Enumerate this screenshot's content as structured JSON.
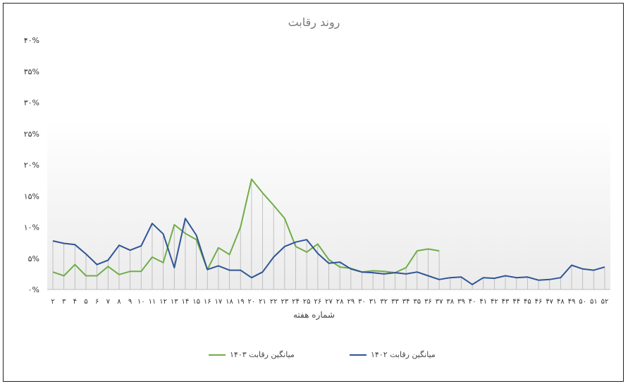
{
  "chart_data": {
    "type": "line",
    "title": "روند رقابت",
    "xlabel": "شماره هفته",
    "ylabel": "",
    "ylim": [
      0,
      40
    ],
    "y_ticks": [
      "۰%",
      "۵%",
      "۱۰%",
      "۱۵%",
      "۲۰%",
      "۲۵%",
      "۳۰%",
      "۳۵%",
      "۴۰%"
    ],
    "categories": [
      "۲",
      "۳",
      "۴",
      "۵",
      "۶",
      "۷",
      "۸",
      "۹",
      "۱۰",
      "۱۱",
      "۱۲",
      "۱۳",
      "۱۴",
      "۱۵",
      "۱۶",
      "۱۷",
      "۱۸",
      "۱۹",
      "۲۰",
      "۲۱",
      "۲۲",
      "۲۳",
      "۲۴",
      "۲۵",
      "۲۶",
      "۲۷",
      "۲۸",
      "۲۹",
      "۳۰",
      "۳۱",
      "۳۲",
      "۳۳",
      "۳۴",
      "۳۵",
      "۳۶",
      "۳۷",
      "۳۸",
      "۳۹",
      "۴۰",
      "۴۱",
      "۴۲",
      "۴۳",
      "۴۴",
      "۴۵",
      "۴۶",
      "۴۷",
      "۴۸",
      "۴۹",
      "۵۰",
      "۵۱",
      "۵۲"
    ],
    "series": [
      {
        "name": "میانگین رقابت ۱۴۰۳",
        "color": "#70ad47",
        "values": [
          2.8,
          2.2,
          4.0,
          2.2,
          2.2,
          3.7,
          2.4,
          2.9,
          2.9,
          5.2,
          4.3,
          10.4,
          9.0,
          8.0,
          3.2,
          6.7,
          5.6,
          10.0,
          17.7,
          15.5,
          13.5,
          11.4,
          6.9,
          6.0,
          7.3,
          4.8,
          3.6,
          3.4,
          2.8,
          3.0,
          2.9,
          2.7,
          3.5,
          6.2,
          6.5,
          6.2,
          null,
          null,
          null,
          null,
          null,
          null,
          null,
          null,
          null,
          null,
          null,
          null,
          null,
          null,
          null
        ]
      },
      {
        "name": "میانگین رقابت ۱۴۰۲",
        "color": "#2f5597",
        "values": [
          7.8,
          7.4,
          7.2,
          5.7,
          4.0,
          4.7,
          7.1,
          6.3,
          7.0,
          10.6,
          8.9,
          3.5,
          11.4,
          8.7,
          3.2,
          3.8,
          3.1,
          3.1,
          1.9,
          2.8,
          5.2,
          6.9,
          7.6,
          8.0,
          5.8,
          4.2,
          4.4,
          3.3,
          2.8,
          2.7,
          2.5,
          2.7,
          2.5,
          2.8,
          2.2,
          1.6,
          1.9,
          2.0,
          0.8,
          1.9,
          1.8,
          2.2,
          1.9,
          2.0,
          1.5,
          1.6,
          1.9,
          3.9,
          3.3,
          3.1,
          3.6
        ]
      }
    ],
    "grid": false,
    "drop_lines": true,
    "legend_position": "bottom"
  }
}
